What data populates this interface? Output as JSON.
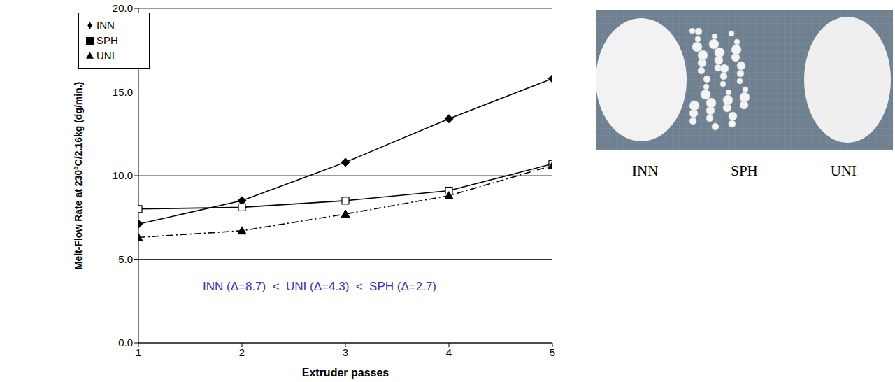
{
  "chart_data": {
    "type": "line",
    "x": [
      1,
      2,
      3,
      4,
      5
    ],
    "x_label": "Extruder passes",
    "y_label": "Melt-Flow Rate at 230°C/2.16kg (dg/min.)",
    "xlim": [
      1,
      5
    ],
    "xticks": [
      1,
      2,
      3,
      4,
      5
    ],
    "ylim": [
      0,
      20
    ],
    "yticks": [
      {
        "value": 0,
        "label": "0.0"
      },
      {
        "value": 5,
        "label": "5.0"
      },
      {
        "value": 10,
        "label": "10.0"
      },
      {
        "value": 15,
        "label": "15.0"
      },
      {
        "value": 20,
        "label": "20.0"
      }
    ],
    "grid": true,
    "legend": "upper left",
    "annotations": [
      "INN (Δ=8.7)  <  UNI (Δ=4.3)  <  SPH (Δ=2.7)"
    ],
    "series": [
      {
        "name": "INN",
        "color": "#000000",
        "marker": "diamond",
        "line_style": "solid",
        "values": [
          7.1,
          8.5,
          10.8,
          13.4,
          15.8
        ]
      },
      {
        "name": "SPH",
        "color": "#000000",
        "marker": "open_square",
        "line_style": "solid",
        "values": [
          8.0,
          8.1,
          8.5,
          9.1,
          10.7
        ]
      },
      {
        "name": "UNI",
        "color": "#000000",
        "marker": "triangle",
        "line_style": "dashdot",
        "values": [
          6.3,
          6.7,
          7.7,
          8.8,
          10.6
        ]
      }
    ]
  },
  "photo": {
    "labels": [
      "INN",
      "SPH",
      "UNI"
    ]
  }
}
